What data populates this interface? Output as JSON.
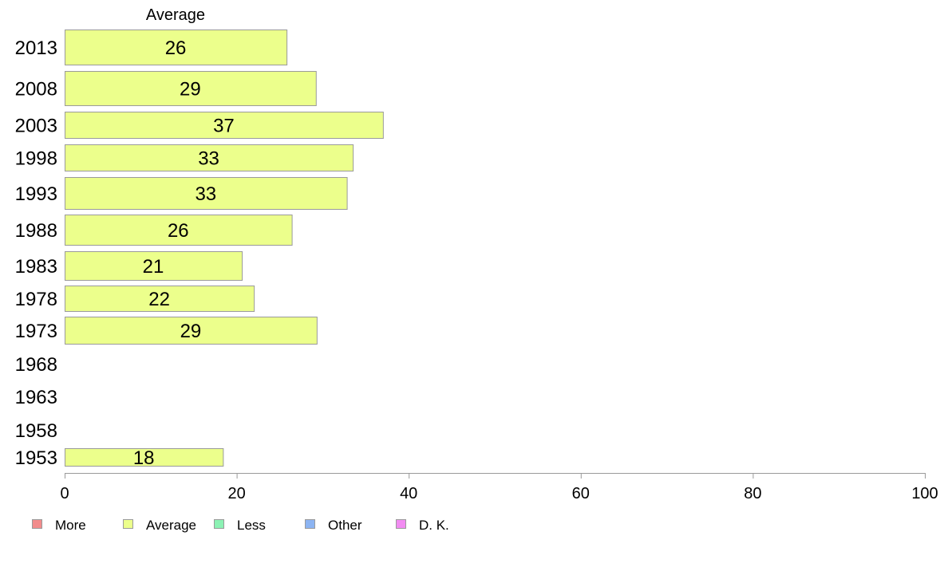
{
  "chart_data": {
    "type": "bar",
    "orientation": "horizontal",
    "title": "",
    "xlabel": "",
    "ylabel": "",
    "xlim": [
      0,
      100
    ],
    "x_ticks": [
      "0",
      "20",
      "40",
      "60",
      "80",
      "100"
    ],
    "grid": false,
    "categories": [
      "2013",
      "2008",
      "2003",
      "1998",
      "1993",
      "1988",
      "1983",
      "1978",
      "1973",
      "1968",
      "1963",
      "1958",
      "1953"
    ],
    "series": [
      {
        "name": "Average",
        "color": "#ecff8c",
        "values": [
          25.8,
          29.2,
          37.0,
          33.5,
          32.8,
          26.4,
          20.6,
          22.0,
          29.3,
          null,
          null,
          null,
          18.4
        ],
        "labels": [
          "26",
          "29",
          "37",
          "33",
          "33",
          "26",
          "21",
          "22",
          "29",
          "",
          "",
          "",
          "18"
        ]
      }
    ],
    "column_header": "Average",
    "legend": {
      "placement": "bottom-left",
      "items": [
        {
          "label": "More",
          "color": "#f28c8c"
        },
        {
          "label": "Average",
          "color": "#ecff8c"
        },
        {
          "label": "Less",
          "color": "#8cf2b4"
        },
        {
          "label": "Other",
          "color": "#8cb4f2"
        },
        {
          "label": "D. K.",
          "color": "#f28cf2"
        }
      ]
    }
  }
}
